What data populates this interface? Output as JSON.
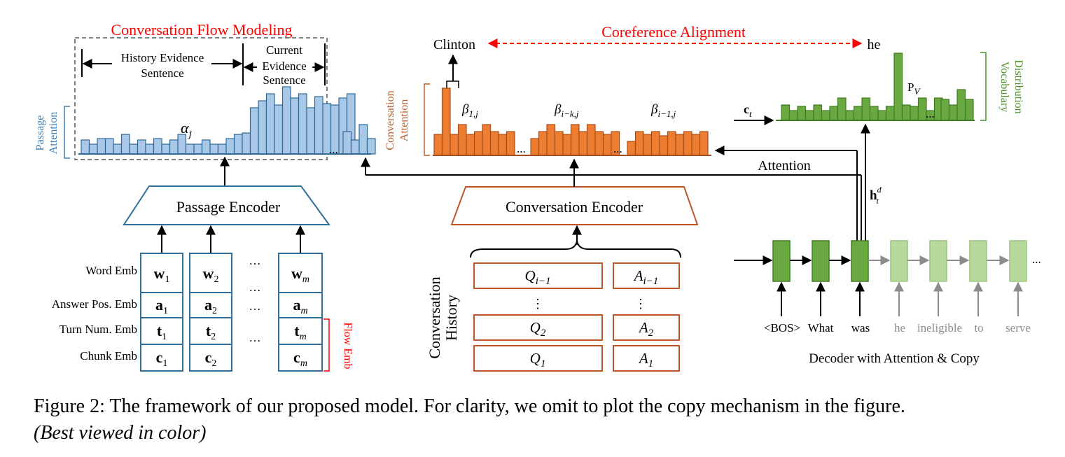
{
  "flow": {
    "title": "Conversation Flow Modeling",
    "history_label_1": "History Evidence",
    "history_label_2": "Sentence",
    "current_label_1": "Current",
    "current_label_2": "Evidence",
    "current_label_3": "Sentence",
    "alpha": "α",
    "alpha_sub": "j",
    "passage_attention_1": "Passage",
    "passage_attention_2": "Attention",
    "ellipsis": "..."
  },
  "passage_encoder": {
    "title": "Passage Encoder",
    "row_labels": [
      "Word Emb",
      "Answer Pos. Emb",
      "Turn Num. Emb",
      "Chunk Emb"
    ],
    "columns": [
      {
        "w": "w",
        "ws": "1",
        "a": "a",
        "as": "1",
        "t": "t",
        "ts": "1",
        "c": "c",
        "cs": "1"
      },
      {
        "w": "w",
        "ws": "2",
        "a": "a",
        "as": "2",
        "t": "t",
        "ts": "2",
        "c": "c",
        "cs": "2"
      },
      {
        "w": "w",
        "ws": "m",
        "a": "a",
        "as": "m",
        "t": "t",
        "ts": "m",
        "c": "c",
        "cs": "m"
      }
    ],
    "dots": "…",
    "flow_emb": "Flow Emb"
  },
  "coref": {
    "title": "Coreference Alignment",
    "left_word": "Clinton",
    "right_word": "he"
  },
  "conv_attention": {
    "label_1": "Conversation",
    "label_2": "Attention",
    "beta1": "β",
    "beta1_sub": "1,j",
    "beta2": "β",
    "beta2_sub": "i−k,j",
    "beta3": "β",
    "beta3_sub": "i−1,j",
    "ellipsis": "..."
  },
  "conv_encoder": {
    "title": "Conversation Encoder",
    "history_1": "Conversation",
    "history_2": "History",
    "rows": [
      {
        "q": "Q",
        "qs": "i−1",
        "a": "A",
        "as": "i−1"
      },
      {
        "q": "Q",
        "qs": "2",
        "a": "A",
        "as": "2"
      },
      {
        "q": "Q",
        "qs": "1",
        "a": "A",
        "as": "1"
      }
    ],
    "vdots": "⋮"
  },
  "decoder": {
    "ct": "c",
    "ct_sub": "t",
    "pv": "P",
    "pv_sub": "V",
    "vocab_1": "Vocabulary",
    "vocab_2": "Distribution",
    "attention": "Attention",
    "h": "h",
    "h_sub": "t",
    "h_sup": "d",
    "tokens": [
      "<BOS>",
      "What",
      "was",
      "he",
      "ineligible",
      "to",
      "serve"
    ],
    "title": "Decoder with Attention & Copy",
    "ellipsis": "..."
  },
  "caption": {
    "line1": "Figure 2: The framework of our proposed model. For clarity, we omit to plot the copy mechanism in the figure.",
    "line2": "(Best viewed in color)"
  },
  "colors": {
    "blue_fill": "#a9c8e8",
    "blue_stroke": "#2e6a98",
    "orange_fill": "#ed7d31",
    "orange_stroke": "#a94e1a",
    "green_fill": "#6aa842",
    "green_stroke": "#3f7d22",
    "light_green": "#b7d99c",
    "red": "#ff0000",
    "encoder_blue": "#2f6f99",
    "encoder_orange": "#c0552a",
    "label_blue": "#3a7fb6",
    "label_orange": "#c05a2a",
    "label_green": "#4d8f2c"
  }
}
